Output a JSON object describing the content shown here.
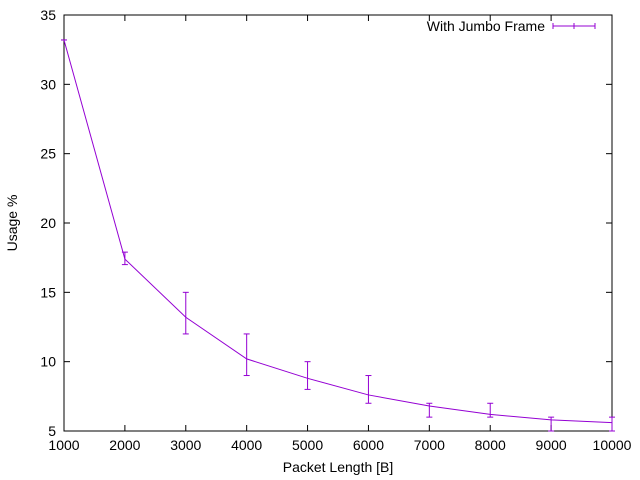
{
  "chart_data": {
    "type": "line",
    "title": "",
    "xlabel": "Packet Length [B]",
    "ylabel": "Usage %",
    "xlim": [
      1000,
      10000
    ],
    "ylim": [
      5,
      35
    ],
    "xticks": [
      1000,
      2000,
      3000,
      4000,
      5000,
      6000,
      7000,
      8000,
      9000,
      10000
    ],
    "yticks": [
      5,
      10,
      15,
      20,
      25,
      30,
      35
    ],
    "grid": false,
    "legend_position": "top-right",
    "series": [
      {
        "name": "With Jumbo Frame",
        "color": "#9400d3",
        "points": [
          {
            "x": 1000,
            "y": 33.2,
            "ylow": 33.2,
            "yhigh": 33.2
          },
          {
            "x": 2000,
            "y": 17.4,
            "ylow": 17.0,
            "yhigh": 17.9
          },
          {
            "x": 3000,
            "y": 13.2,
            "ylow": 12.0,
            "yhigh": 15.0
          },
          {
            "x": 4000,
            "y": 10.2,
            "ylow": 9.0,
            "yhigh": 12.0
          },
          {
            "x": 5000,
            "y": 8.8,
            "ylow": 8.0,
            "yhigh": 10.0
          },
          {
            "x": 6000,
            "y": 7.6,
            "ylow": 7.0,
            "yhigh": 9.0
          },
          {
            "x": 7000,
            "y": 6.8,
            "ylow": 6.0,
            "yhigh": 7.0
          },
          {
            "x": 8000,
            "y": 6.2,
            "ylow": 6.0,
            "yhigh": 7.0
          },
          {
            "x": 9000,
            "y": 5.8,
            "ylow": 5.0,
            "yhigh": 6.0
          },
          {
            "x": 10000,
            "y": 5.6,
            "ylow": 5.0,
            "yhigh": 6.0
          }
        ]
      }
    ]
  }
}
